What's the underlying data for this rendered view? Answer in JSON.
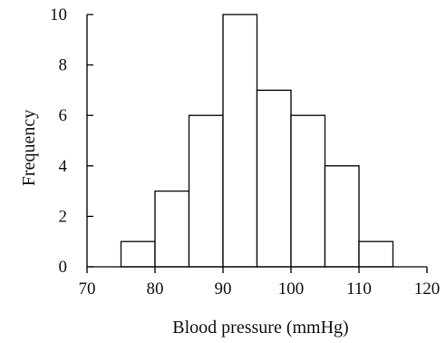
{
  "chart_data": {
    "type": "bar",
    "title": "",
    "xlabel": "Blood pressure (mmHg)",
    "ylabel": "Frequency",
    "bins": [
      {
        "start": 75,
        "end": 80,
        "value": 1
      },
      {
        "start": 80,
        "end": 85,
        "value": 3
      },
      {
        "start": 85,
        "end": 90,
        "value": 6
      },
      {
        "start": 90,
        "end": 95,
        "value": 10
      },
      {
        "start": 95,
        "end": 100,
        "value": 7
      },
      {
        "start": 100,
        "end": 105,
        "value": 6
      },
      {
        "start": 105,
        "end": 110,
        "value": 4
      },
      {
        "start": 110,
        "end": 115,
        "value": 1
      }
    ],
    "xlim": [
      70,
      120
    ],
    "ylim": [
      0,
      10
    ],
    "xticks": [
      70,
      80,
      90,
      100,
      110,
      120
    ],
    "yticks": [
      0,
      2,
      4,
      6,
      8,
      10
    ],
    "grid": false,
    "legend": "none"
  }
}
